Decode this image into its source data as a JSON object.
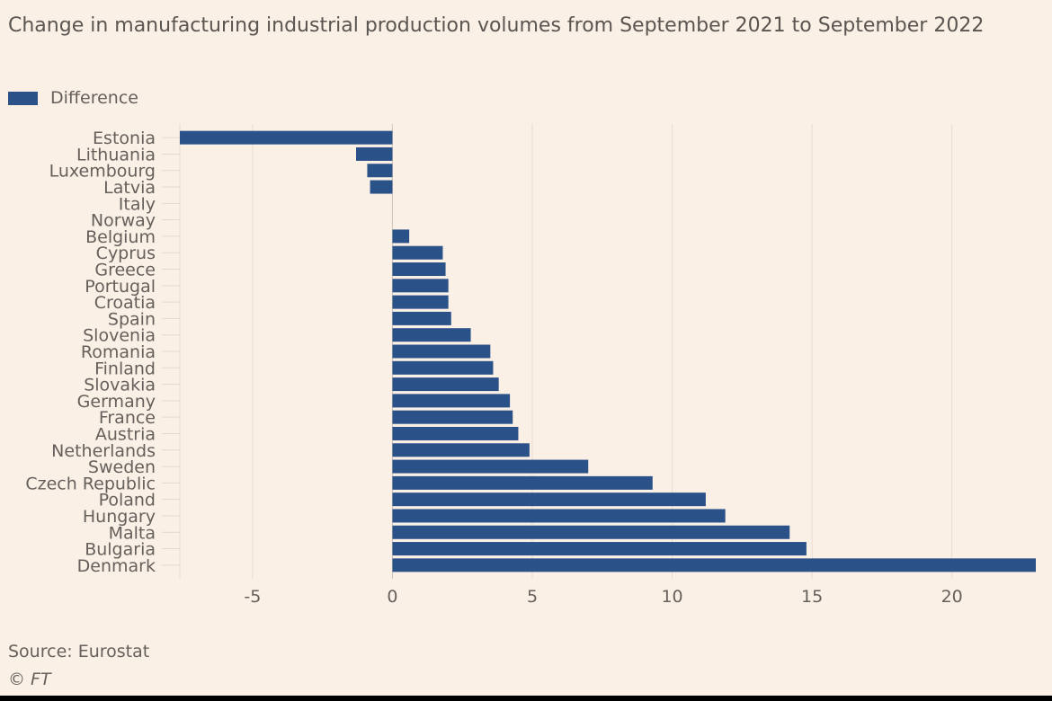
{
  "title": "Change in manufacturing industrial production volumes from September 2021 to September 2022",
  "legend": {
    "label": "Difference",
    "color": "#2b5189"
  },
  "source": "Source: Eurostat",
  "credit": "© FT",
  "chart_data": {
    "type": "bar",
    "orientation": "horizontal",
    "title": "Change in manufacturing industrial production volumes from September 2021 to September 2022",
    "xlabel": "",
    "ylabel": "",
    "xlim": [
      -7.6,
      23
    ],
    "xticks": [
      -5,
      0,
      5,
      10,
      15,
      20
    ],
    "grid": true,
    "legend_position": "top-left",
    "categories": [
      "Estonia",
      "Lithuania",
      "Luxembourg",
      "Latvia",
      "Italy",
      "Norway",
      "Belgium",
      "Cyprus",
      "Greece",
      "Portugal",
      "Croatia",
      "Spain",
      "Slovenia",
      "Romania",
      "Finland",
      "Slovakia",
      "Germany",
      "France",
      "Austria",
      "Netherlands",
      "Sweden",
      "Czech Republic",
      "Poland",
      "Hungary",
      "Malta",
      "Bulgaria",
      "Denmark"
    ],
    "series": [
      {
        "name": "Difference",
        "color": "#2b5189",
        "values": [
          -7.6,
          -1.3,
          -0.9,
          -0.8,
          0,
          0,
          0.6,
          1.8,
          1.9,
          2.0,
          2.0,
          2.1,
          2.8,
          3.5,
          3.6,
          3.8,
          4.2,
          4.3,
          4.5,
          4.9,
          7.0,
          9.3,
          11.2,
          11.9,
          14.2,
          14.8,
          23.0
        ]
      }
    ]
  }
}
